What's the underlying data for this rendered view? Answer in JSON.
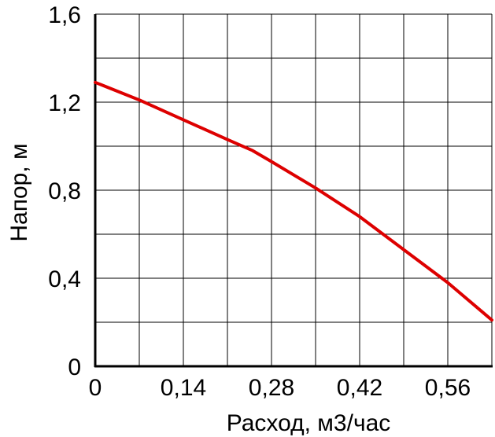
{
  "chart_data": {
    "type": "line",
    "xlabel": "Расход, м3/час",
    "ylabel": "Напор, м",
    "xlim": [
      0,
      0.63
    ],
    "ylim": [
      0,
      1.6
    ],
    "x_ticks": [
      0,
      0.14,
      0.28,
      0.42,
      0.56
    ],
    "x_tick_labels": [
      "0",
      "0,14",
      "0,28",
      "0,42",
      "0,56"
    ],
    "y_ticks": [
      0,
      0.4,
      0.8,
      1.2,
      1.6
    ],
    "y_tick_labels": [
      "0",
      "0,4",
      "0,8",
      "1,2",
      "1,6"
    ],
    "x_minor_step": 0.07,
    "y_minor_step": 0.2,
    "grid": true,
    "series": [
      {
        "color": "#dd0000",
        "x": [
          0,
          0.07,
          0.14,
          0.21,
          0.25,
          0.28,
          0.35,
          0.42,
          0.49,
          0.56,
          0.63
        ],
        "y": [
          1.29,
          1.21,
          1.12,
          1.03,
          0.98,
          0.93,
          0.81,
          0.68,
          0.53,
          0.38,
          0.21
        ]
      }
    ]
  }
}
